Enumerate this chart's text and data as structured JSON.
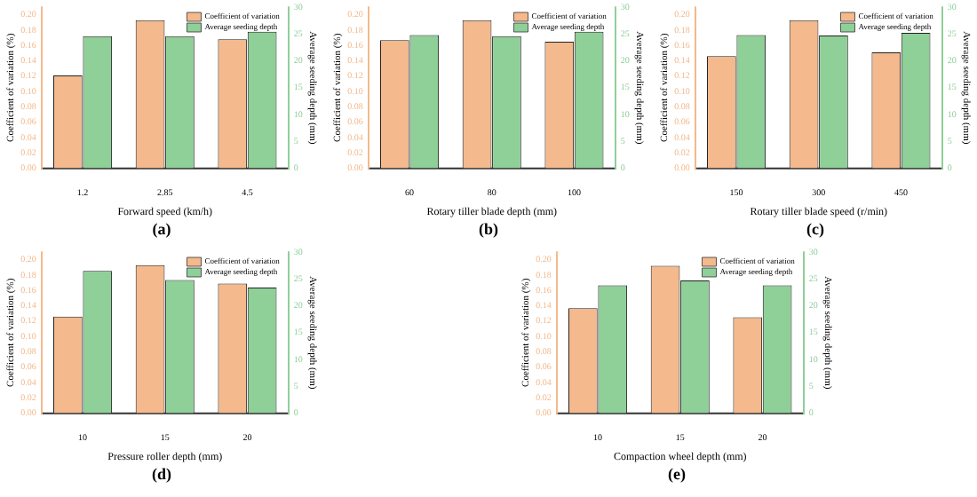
{
  "chart_data": [
    {
      "type": "bar",
      "categories": [
        "1.2",
        "2.85",
        "4.5"
      ],
      "xlabel": "Forward speed (km/h)",
      "ylabel": "Coefficient of variation (%)",
      "y2label": "Average seeding depth (mm)",
      "ylim": [
        0,
        0.21
      ],
      "yticks": [
        {
          "value": 0,
          "label": "0.00"
        },
        {
          "value": 0.02,
          "label": "0.02"
        },
        {
          "value": 0.04,
          "label": "0.04"
        },
        {
          "value": 0.06,
          "label": "0.06"
        },
        {
          "value": 0.08,
          "label": "0.08"
        },
        {
          "value": 0.1,
          "label": "0.10"
        },
        {
          "value": 0.12,
          "label": "0.12"
        },
        {
          "value": 0.14,
          "label": "0.14"
        },
        {
          "value": 0.16,
          "label": "0.16"
        },
        {
          "value": 0.18,
          "label": "0.18"
        },
        {
          "value": 0.2,
          "label": "0.20"
        }
      ],
      "y2lim": [
        0,
        30
      ],
      "y2ticks": [
        0,
        5,
        10,
        15,
        20,
        25,
        30
      ],
      "legend": "top right",
      "grid": false,
      "annotations": [
        "(a)"
      ],
      "series": [
        {
          "name": "Coefficient of variation",
          "color": "#f4b98c",
          "values": [
            0.121,
            0.193,
            0.168
          ]
        },
        {
          "name": "Average seeding depth",
          "color": "#8fcf98",
          "axis": "y2",
          "values": [
            24.6,
            24.6,
            25.4
          ]
        }
      ]
    },
    {
      "type": "bar",
      "categories": [
        "60",
        "80",
        "100"
      ],
      "xlabel": "Rotary tiller blade depth (mm)",
      "ylabel": "Coefficient of variation (%)",
      "y2label": "Average seeding depth (mm)",
      "ylim": [
        0,
        0.21
      ],
      "yticks": [
        {
          "value": 0,
          "label": "0.00"
        },
        {
          "value": 0.02,
          "label": "0.02"
        },
        {
          "value": 0.04,
          "label": "0.04"
        },
        {
          "value": 0.06,
          "label": "0.06"
        },
        {
          "value": 0.08,
          "label": "0.08"
        },
        {
          "value": 0.1,
          "label": "0.10"
        },
        {
          "value": 0.12,
          "label": "0.12"
        },
        {
          "value": 0.14,
          "label": "0.14"
        },
        {
          "value": 0.16,
          "label": "0.16"
        },
        {
          "value": 0.18,
          "label": "0.18"
        },
        {
          "value": 0.2,
          "label": "0.20"
        }
      ],
      "y2lim": [
        0,
        30
      ],
      "y2ticks": [
        0,
        5,
        10,
        15,
        20,
        25,
        30
      ],
      "legend": "top right",
      "grid": false,
      "annotations": [
        "(b)"
      ],
      "series": [
        {
          "name": "Coefficient of variation",
          "color": "#f4b98c",
          "values": [
            0.167,
            0.193,
            0.165
          ]
        },
        {
          "name": "Average seeding depth",
          "color": "#8fcf98",
          "axis": "y2",
          "values": [
            24.8,
            24.6,
            25.4
          ]
        }
      ]
    },
    {
      "type": "bar",
      "categories": [
        "150",
        "300",
        "450"
      ],
      "xlabel": "Rotary tiller blade speed (r/min)",
      "ylabel": "Coefficient of variation (%)",
      "y2label": "Average seeding depth (mm)",
      "ylim": [
        0,
        0.21
      ],
      "yticks": [
        {
          "value": 0,
          "label": "0.00"
        },
        {
          "value": 0.02,
          "label": "0.02"
        },
        {
          "value": 0.04,
          "label": "0.04"
        },
        {
          "value": 0.06,
          "label": "0.06"
        },
        {
          "value": 0.08,
          "label": "0.08"
        },
        {
          "value": 0.1,
          "label": "0.10"
        },
        {
          "value": 0.12,
          "label": "0.12"
        },
        {
          "value": 0.14,
          "label": "0.14"
        },
        {
          "value": 0.16,
          "label": "0.16"
        },
        {
          "value": 0.18,
          "label": "0.18"
        },
        {
          "value": 0.2,
          "label": "0.20"
        }
      ],
      "y2lim": [
        0,
        30
      ],
      "y2ticks": [
        0,
        5,
        10,
        15,
        20,
        25,
        30
      ],
      "legend": "top right",
      "grid": false,
      "annotations": [
        "(c)"
      ],
      "series": [
        {
          "name": "Coefficient of variation",
          "color": "#f4b98c",
          "values": [
            0.146,
            0.193,
            0.151
          ]
        },
        {
          "name": "Average seeding depth",
          "color": "#8fcf98",
          "axis": "y2",
          "values": [
            24.8,
            24.7,
            25.2
          ]
        }
      ]
    },
    {
      "type": "bar",
      "categories": [
        "10",
        "15",
        "20"
      ],
      "xlabel": "Pressure roller depth (mm)",
      "ylabel": "Coefficient of variation (%)",
      "y2label": "Average seeding depth (mm)",
      "ylim": [
        0,
        0.21
      ],
      "yticks": [
        {
          "value": 0,
          "label": "0.00"
        },
        {
          "value": 0.02,
          "label": "0.02"
        },
        {
          "value": 0.04,
          "label": "0.04"
        },
        {
          "value": 0.06,
          "label": "0.06"
        },
        {
          "value": 0.08,
          "label": "0.08"
        },
        {
          "value": 0.1,
          "label": "0.10"
        },
        {
          "value": 0.12,
          "label": "0.12"
        },
        {
          "value": 0.14,
          "label": "0.14"
        },
        {
          "value": 0.16,
          "label": "0.16"
        },
        {
          "value": 0.18,
          "label": "0.18"
        },
        {
          "value": 0.2,
          "label": "0.20"
        }
      ],
      "y2lim": [
        0,
        30
      ],
      "y2ticks": [
        0,
        5,
        10,
        15,
        20,
        25,
        30
      ],
      "legend": "top right",
      "grid": false,
      "annotations": [
        "(d)"
      ],
      "series": [
        {
          "name": "Coefficient of variation",
          "color": "#f4b98c",
          "values": [
            0.126,
            0.193,
            0.169
          ]
        },
        {
          "name": "Average seeding depth",
          "color": "#8fcf98",
          "axis": "y2",
          "values": [
            26.5,
            24.8,
            23.4
          ]
        }
      ]
    },
    {
      "type": "bar",
      "categories": [
        "10",
        "15",
        "20"
      ],
      "xlabel": "Compaction wheel depth (mm)",
      "ylabel": "Coefficient of variation (%)",
      "y2label": "Average seeding depth (mm)",
      "ylim": [
        0,
        0.21
      ],
      "yticks": [
        {
          "value": 0,
          "label": "0.00"
        },
        {
          "value": 0.02,
          "label": "0.02"
        },
        {
          "value": 0.04,
          "label": "0.04"
        },
        {
          "value": 0.06,
          "label": "0.06"
        },
        {
          "value": 0.08,
          "label": "0.08"
        },
        {
          "value": 0.1,
          "label": "0.10"
        },
        {
          "value": 0.12,
          "label": "0.12"
        },
        {
          "value": 0.14,
          "label": "0.14"
        },
        {
          "value": 0.16,
          "label": "0.16"
        },
        {
          "value": 0.18,
          "label": "0.18"
        },
        {
          "value": 0.2,
          "label": "0.20"
        }
      ],
      "y2lim": [
        0,
        30
      ],
      "y2ticks": [
        0,
        5,
        10,
        15,
        20,
        25,
        30
      ],
      "legend": "top right",
      "grid": false,
      "annotations": [
        "(e)"
      ],
      "series": [
        {
          "name": "Coefficient of variation",
          "color": "#f4b98c",
          "values": [
            0.137,
            0.192,
            0.125
          ]
        },
        {
          "name": "Average seeding depth",
          "color": "#8fcf98",
          "axis": "y2",
          "values": [
            23.8,
            24.7,
            23.8
          ]
        }
      ]
    }
  ]
}
